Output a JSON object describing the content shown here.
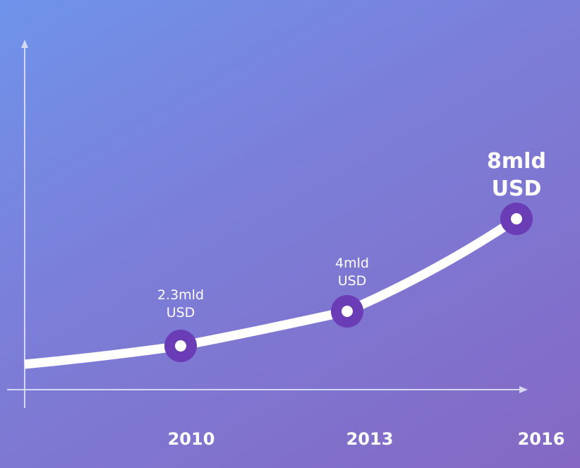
{
  "chart_data": {
    "type": "line",
    "title": "",
    "xlabel": "",
    "ylabel": "",
    "x": [
      "2010",
      "2013",
      "2016"
    ],
    "series": [
      {
        "values": [
          2.3,
          4,
          8
        ],
        "labels": [
          {
            "value": "2.3mld",
            "unit": "USD"
          },
          {
            "value": "4mld",
            "unit": "USD"
          },
          {
            "value": "8mld",
            "unit": "USD"
          }
        ]
      }
    ],
    "grid": false,
    "colors": {
      "line": "#ffffff",
      "marker_ring": "#6a3cb5",
      "marker_center": "#ffffff",
      "axis": "#d4d8f2"
    }
  }
}
